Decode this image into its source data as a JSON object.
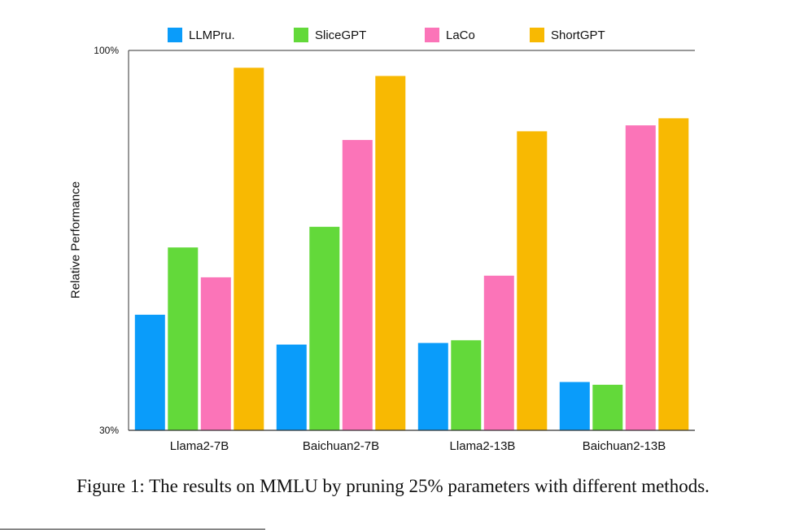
{
  "chart_data": {
    "type": "bar",
    "title": "",
    "xlabel": "",
    "ylabel": "Relative Performance",
    "ylim": [
      30,
      100
    ],
    "yticks": [
      30,
      100
    ],
    "ytick_labels": [
      "30%",
      "100%"
    ],
    "grid": false,
    "legend_position": "top",
    "categories": [
      "Llama2-7B",
      "Baichuan2-7B",
      "Llama2-13B",
      "Baichuan2-13B"
    ],
    "series": [
      {
        "name": "LLMPru.",
        "color": "#0a9cfa",
        "values": [
          51.3,
          45.8,
          46.1,
          38.9
        ]
      },
      {
        "name": "SliceGPT",
        "color": "#63d93a",
        "values": [
          63.7,
          67.5,
          46.6,
          38.4
        ]
      },
      {
        "name": "LaCo",
        "color": "#fb74b8",
        "values": [
          58.2,
          83.5,
          58.5,
          86.2
        ]
      },
      {
        "name": "ShortGPT",
        "color": "#f8b902",
        "values": [
          96.8,
          95.3,
          85.1,
          87.5
        ]
      }
    ]
  },
  "caption": "Figure 1: The results on MMLU by pruning 25% parameters with different methods."
}
